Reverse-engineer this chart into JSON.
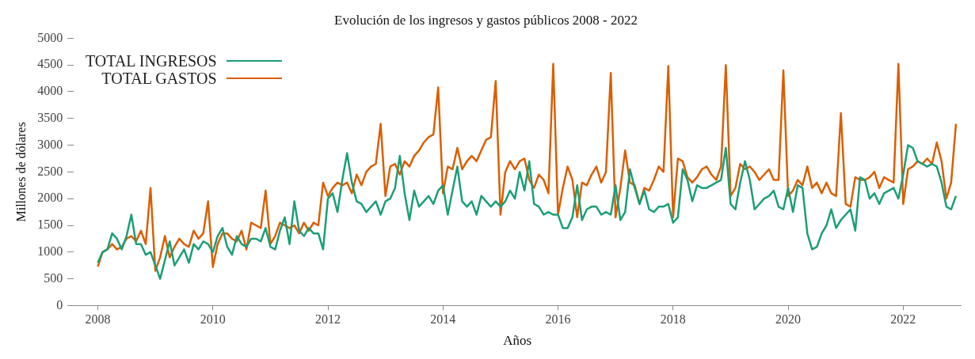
{
  "chart_data": {
    "type": "line",
    "title": "Evolución de los ingresos y gastos públicos 2008 - 2022",
    "xlabel": "Años",
    "ylabel": "Millones de dólares",
    "x": [
      "2008-01",
      "2008-02",
      "2008-03",
      "2008-04",
      "2008-05",
      "2008-06",
      "2008-07",
      "2008-08",
      "2008-09",
      "2008-10",
      "2008-11",
      "2008-12",
      "2009-01",
      "2009-02",
      "2009-03",
      "2009-04",
      "2009-05",
      "2009-06",
      "2009-07",
      "2009-08",
      "2009-09",
      "2009-10",
      "2009-11",
      "2009-12",
      "2010-01",
      "2010-02",
      "2010-03",
      "2010-04",
      "2010-05",
      "2010-06",
      "2010-07",
      "2010-08",
      "2010-09",
      "2010-10",
      "2010-11",
      "2010-12",
      "2011-01",
      "2011-02",
      "2011-03",
      "2011-04",
      "2011-05",
      "2011-06",
      "2011-07",
      "2011-08",
      "2011-09",
      "2011-10",
      "2011-11",
      "2011-12",
      "2012-01",
      "2012-02",
      "2012-03",
      "2012-04",
      "2012-05",
      "2012-06",
      "2012-07",
      "2012-08",
      "2012-09",
      "2012-10",
      "2012-11",
      "2012-12",
      "2013-01",
      "2013-02",
      "2013-03",
      "2013-04",
      "2013-05",
      "2013-06",
      "2013-07",
      "2013-08",
      "2013-09",
      "2013-10",
      "2013-11",
      "2013-12",
      "2014-01",
      "2014-02",
      "2014-03",
      "2014-04",
      "2014-05",
      "2014-06",
      "2014-07",
      "2014-08",
      "2014-09",
      "2014-10",
      "2014-11",
      "2014-12",
      "2015-01",
      "2015-02",
      "2015-03",
      "2015-04",
      "2015-05",
      "2015-06",
      "2015-07",
      "2015-08",
      "2015-09",
      "2015-10",
      "2015-11",
      "2015-12",
      "2016-01",
      "2016-02",
      "2016-03",
      "2016-04",
      "2016-05",
      "2016-06",
      "2016-07",
      "2016-08",
      "2016-09",
      "2016-10",
      "2016-11",
      "2016-12",
      "2017-01",
      "2017-02",
      "2017-03",
      "2017-04",
      "2017-05",
      "2017-06",
      "2017-07",
      "2017-08",
      "2017-09",
      "2017-10",
      "2017-11",
      "2017-12",
      "2018-01",
      "2018-02",
      "2018-03",
      "2018-04",
      "2018-05",
      "2018-06",
      "2018-07",
      "2018-08",
      "2018-09",
      "2018-10",
      "2018-11",
      "2018-12",
      "2019-01",
      "2019-02",
      "2019-03",
      "2019-04",
      "2019-05",
      "2019-06",
      "2019-07",
      "2019-08",
      "2019-09",
      "2019-10",
      "2019-11",
      "2019-12",
      "2020-01",
      "2020-02",
      "2020-03",
      "2020-04",
      "2020-05",
      "2020-06",
      "2020-07",
      "2020-08",
      "2020-09",
      "2020-10",
      "2020-11",
      "2020-12",
      "2021-01",
      "2021-02",
      "2021-03",
      "2021-04",
      "2021-05",
      "2021-06",
      "2021-07",
      "2021-08",
      "2021-09",
      "2021-10",
      "2021-11",
      "2021-12",
      "2022-01",
      "2022-02",
      "2022-03",
      "2022-04",
      "2022-05",
      "2022-06",
      "2022-07",
      "2022-08",
      "2022-09",
      "2022-10",
      "2022-11",
      "2022-12"
    ],
    "series": [
      {
        "name": "TOTAL INGRESOS",
        "color": "#1b9e77",
        "values": [
          800,
          1000,
          1050,
          1350,
          1250,
          1050,
          1300,
          1700,
          1150,
          1150,
          950,
          1000,
          750,
          500,
          850,
          1200,
          750,
          900,
          1050,
          800,
          1150,
          1050,
          1200,
          1150,
          1000,
          1300,
          1450,
          1100,
          950,
          1300,
          1150,
          1100,
          1250,
          1250,
          1200,
          1450,
          1100,
          1050,
          1400,
          1650,
          1150,
          1950,
          1400,
          1300,
          1450,
          1350,
          1350,
          1050,
          2000,
          2100,
          1750,
          2350,
          2850,
          2300,
          1950,
          1900,
          1750,
          1850,
          1950,
          1700,
          1950,
          2000,
          2200,
          2800,
          2100,
          1600,
          2150,
          1850,
          1950,
          2050,
          1900,
          2150,
          2250,
          1700,
          2150,
          2600,
          1950,
          1850,
          1950,
          1700,
          2050,
          1950,
          1850,
          1950,
          1850,
          1950,
          2150,
          2000,
          2500,
          2150,
          2700,
          1900,
          1850,
          1700,
          1750,
          1700,
          1700,
          1450,
          1450,
          1650,
          2250,
          1600,
          1800,
          1850,
          1850,
          1700,
          1750,
          1700,
          2250,
          1600,
          1750,
          2550,
          2200,
          1900,
          2150,
          1800,
          1750,
          1850,
          1850,
          1900,
          1550,
          1650,
          2550,
          2350,
          1950,
          2250,
          2200,
          2200,
          2250,
          2300,
          2350,
          2950,
          1900,
          1800,
          2300,
          2700,
          2350,
          1800,
          1900,
          2000,
          2050,
          2150,
          1850,
          1800,
          2200,
          1750,
          2250,
          2200,
          1350,
          1050,
          1100,
          1350,
          1500,
          1800,
          1450,
          1600,
          1700,
          1800,
          1400,
          2400,
          2350,
          2000,
          2100,
          1900,
          2100,
          2150,
          2200,
          2000,
          2450,
          3000,
          2950,
          2700,
          2650,
          2600,
          2650,
          2600,
          2300,
          1850,
          1800,
          2050
        ]
      },
      {
        "name": "TOTAL GASTOS",
        "color": "#d95f02",
        "values": [
          730,
          1000,
          1050,
          1150,
          1050,
          1100,
          1250,
          1300,
          1200,
          1400,
          1150,
          2200,
          650,
          900,
          1300,
          900,
          1100,
          1250,
          1150,
          1100,
          1400,
          1250,
          1350,
          1950,
          720,
          1150,
          1350,
          1350,
          1250,
          1200,
          1400,
          1050,
          1550,
          1500,
          1450,
          2150,
          1150,
          1300,
          1550,
          1500,
          1450,
          1500,
          1350,
          1550,
          1400,
          1550,
          1500,
          2300,
          2050,
          2200,
          2300,
          2250,
          2300,
          2100,
          2450,
          2250,
          2500,
          2600,
          2650,
          3400,
          2050,
          2600,
          2650,
          2450,
          2700,
          2600,
          2800,
          2900,
          3050,
          3150,
          3200,
          4080,
          2100,
          2600,
          2550,
          2950,
          2550,
          2700,
          2800,
          2700,
          2900,
          3100,
          3150,
          4200,
          1700,
          2500,
          2700,
          2550,
          2700,
          2750,
          2350,
          2200,
          2450,
          2350,
          2100,
          4520,
          1700,
          2200,
          2600,
          2350,
          1650,
          2300,
          2250,
          2450,
          2600,
          2300,
          2500,
          4350,
          1650,
          2200,
          2900,
          2300,
          2250,
          1900,
          2200,
          2150,
          2350,
          2600,
          2500,
          4480,
          1650,
          2750,
          2700,
          2400,
          2300,
          2400,
          2550,
          2600,
          2450,
          2350,
          2600,
          4500,
          2050,
          2200,
          2650,
          2550,
          2600,
          2500,
          2350,
          2450,
          2550,
          2350,
          2350,
          4400,
          2050,
          2150,
          2350,
          2250,
          2600,
          2200,
          2300,
          2100,
          2300,
          2100,
          2050,
          3600,
          1900,
          1850,
          2400,
          2350,
          2350,
          2400,
          2500,
          2200,
          2400,
          2350,
          2300,
          4520,
          1900,
          2550,
          2600,
          2700,
          2650,
          2750,
          2650,
          3050,
          2700,
          2000,
          2300,
          3400
        ]
      }
    ],
    "xlim": [
      "2007-08",
      "2023-01"
    ],
    "xticks": [
      "2008",
      "2010",
      "2012",
      "2014",
      "2016",
      "2018",
      "2020",
      "2022"
    ],
    "ylim": [
      0,
      5000
    ],
    "yticks": [
      0,
      500,
      1000,
      1500,
      2000,
      2500,
      3000,
      3500,
      4000,
      4500,
      5000
    ],
    "grid": false,
    "legend": "top left",
    "marker": "none",
    "line_style": "solid"
  }
}
